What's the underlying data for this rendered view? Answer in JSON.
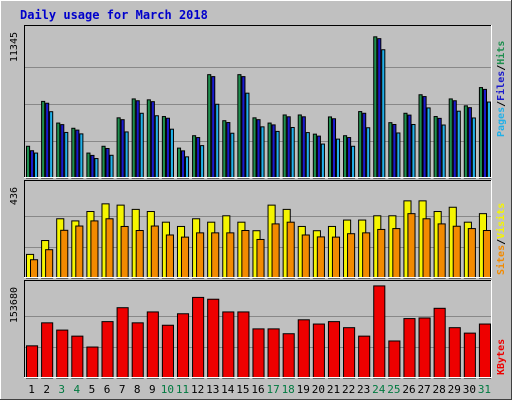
{
  "chart_data": {
    "type": "bar",
    "title": "Daily usage for March 2018",
    "categories": [
      "1",
      "2",
      "3",
      "4",
      "5",
      "6",
      "7",
      "8",
      "9",
      "10",
      "11",
      "12",
      "13",
      "14",
      "15",
      "16",
      "17",
      "18",
      "19",
      "20",
      "21",
      "22",
      "23",
      "24",
      "25",
      "26",
      "27",
      "28",
      "29",
      "30",
      "31"
    ],
    "weekend_days": [
      "3",
      "4",
      "10",
      "11",
      "17",
      "18",
      "24",
      "25",
      "31"
    ],
    "panels": [
      {
        "id": "hits-files-pages",
        "axis_label_parts": [
          "Pages",
          "Files",
          "Hits"
        ],
        "ymax_label": "11345",
        "ymax": 11345,
        "series": [
          {
            "name": "Hits",
            "color": "#1f8f4f",
            "values": [
              2470,
              5910,
              4250,
              3850,
              1950,
              2470,
              4650,
              6100,
              6030,
              4750,
              2330,
              3280,
              7960,
              4430,
              7960,
              4650,
              4250,
              4870,
              4870,
              3400,
              4720,
              3280,
              5130,
              10860,
              4280,
              5000,
              6420,
              4750,
              6100,
              5570,
              6970
            ]
          },
          {
            "name": "Files",
            "color": "#1a1acc",
            "values": [
              2130,
              5770,
              4130,
              3710,
              1770,
              2300,
              4510,
              5960,
              5890,
              4620,
              2120,
              3140,
              7810,
              4290,
              7810,
              4510,
              4110,
              4730,
              4730,
              3250,
              4580,
              3140,
              5000,
              10720,
              4140,
              4860,
              6280,
              4610,
              5960,
              5430,
              6830
            ]
          },
          {
            "name": "Pages",
            "color": "#22b0e8",
            "values": [
              1950,
              5120,
              3530,
              3420,
              1530,
              1780,
              3570,
              5000,
              4810,
              3780,
              1660,
              2520,
              5690,
              3470,
              6540,
              3960,
              3610,
              3910,
              3520,
              2640,
              3020,
              2470,
              3890,
              9870,
              3490,
              4140,
              5410,
              4100,
              5160,
              4640,
              5860
            ]
          }
        ]
      },
      {
        "id": "visits-sites",
        "axis_label_parts": [
          "Sites",
          "Visits"
        ],
        "ymax_label": "436",
        "ymax": 436,
        "series": [
          {
            "name": "Visits",
            "color": "#f5f500",
            "values": [
              113,
              178,
              280,
              270,
              314,
              350,
              344,
              324,
              314,
              264,
              244,
              280,
              264,
              294,
              264,
              224,
              344,
              324,
              244,
              224,
              244,
              274,
              274,
              294,
              294,
              364,
              364,
              314,
              334,
              264,
              304
            ]
          },
          {
            "name": "Sites",
            "color": "#f28a00",
            "values": [
              88,
              135,
              226,
              246,
              270,
              280,
              244,
              225,
              246,
              204,
              194,
              214,
              214,
              214,
              225,
              183,
              256,
              264,
              204,
              195,
              194,
              210,
              214,
              230,
              234,
              304,
              280,
              256,
              245,
              234,
              225
            ]
          }
        ]
      },
      {
        "id": "kbytes",
        "axis_label_parts": [
          "KBytes"
        ],
        "ymax_label": "153680",
        "ymax": 153680,
        "series": [
          {
            "name": "KBytes",
            "color": "#ee0000",
            "values": [
              54000,
              92000,
              80000,
              70000,
              52000,
              94000,
              117000,
              92000,
              110000,
              88000,
              107000,
              134000,
              131000,
              110000,
              110000,
              82000,
              82000,
              74000,
              97000,
              90000,
              94000,
              84000,
              70000,
              153000,
              62000,
              99000,
              100000,
              116000,
              84000,
              75000,
              90000
            ]
          }
        ]
      }
    ]
  }
}
